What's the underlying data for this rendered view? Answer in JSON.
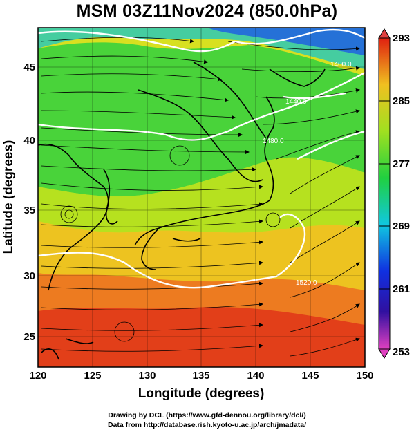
{
  "title": "MSM 03Z11Nov2024 (850.0hPa)",
  "xlabel": "Longitude (degrees)",
  "ylabel": "Latitude  (degrees)",
  "x_ticks": [
    "120",
    "125",
    "130",
    "135",
    "140",
    "145",
    "150"
  ],
  "y_ticks": [
    "25",
    "30",
    "35",
    "40",
    "45"
  ],
  "colorbar": {
    "labels": [
      "293",
      "285",
      "277",
      "269",
      "261",
      "253"
    ],
    "min": 253,
    "max": 293
  },
  "contour_labels": [
    "1400.0",
    "1440.0",
    "1480.0",
    "1520.0"
  ],
  "credit_line1": "Drawing by DCL (https://www.gfd-dennou.org/library/dcl/)",
  "credit_line2": "Data from http://database.rish.kyoto-u.ac.jp/arch/jmadata/",
  "colors": {
    "cold": "#0020c0",
    "mid": "#20c020",
    "warm": "#e03010"
  }
}
